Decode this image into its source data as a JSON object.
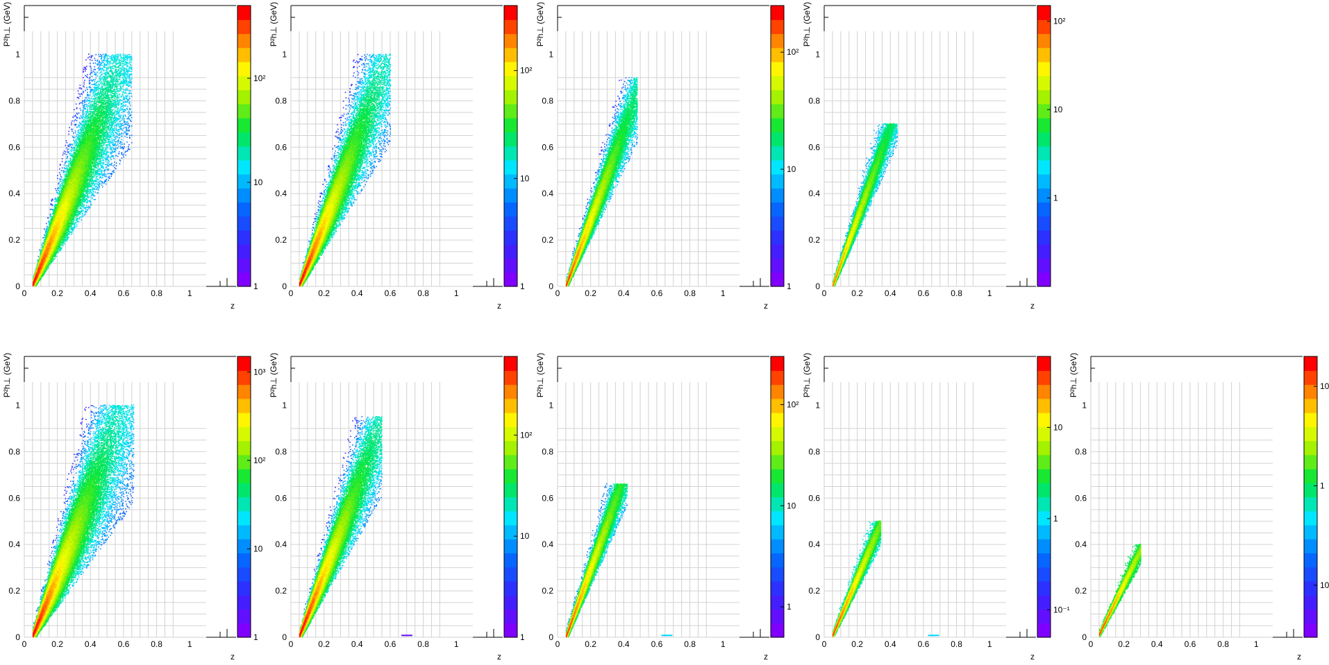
{
  "figure": {
    "columns": 5,
    "rows": 2
  },
  "chart_data": [
    {
      "type": "heatmap",
      "row": 0,
      "col": 0,
      "xlabel": "z",
      "ylabel": "P²h⊥ (GeV)",
      "xlim": [
        0,
        1.1
      ],
      "ylim": [
        0,
        1.1
      ],
      "grid": true,
      "x_ticks": [
        "0",
        "0.2",
        "0.4",
        "0.6",
        "0.8",
        "1"
      ],
      "y_ticks": [
        "0",
        "0.2",
        "0.4",
        "0.6",
        "0.8",
        "1"
      ],
      "colorbar": {
        "scale": "log",
        "min": 1,
        "max": 500,
        "tick_labels": [
          "1",
          "10",
          "10²"
        ],
        "tick_values": [
          1,
          10,
          100
        ]
      },
      "shape": {
        "xmin": 0.05,
        "xmax": 0.65,
        "peak": [
          0.07,
          0.04
        ],
        "slope": 1.7,
        "width0": 0.02,
        "width_growth": 0.55,
        "ymax": 1.0,
        "max_level": 1.0,
        "floor_level": 0.02
      }
    },
    {
      "type": "heatmap",
      "row": 0,
      "col": 1,
      "xlabel": "z",
      "ylabel": "P²h⊥ (GeV)",
      "xlim": [
        0,
        1.1
      ],
      "ylim": [
        0,
        1.1
      ],
      "grid": true,
      "x_ticks": [
        "0",
        "0.2",
        "0.4",
        "0.6",
        "0.8",
        "1"
      ],
      "y_ticks": [
        "0",
        "0.2",
        "0.4",
        "0.6",
        "0.8",
        "1"
      ],
      "colorbar": {
        "scale": "log",
        "min": 1,
        "max": 400,
        "tick_labels": [
          "1",
          "10",
          "10²"
        ],
        "tick_values": [
          1,
          10,
          100
        ]
      },
      "shape": {
        "xmin": 0.05,
        "xmax": 0.6,
        "peak": [
          0.07,
          0.04
        ],
        "slope": 1.75,
        "width0": 0.02,
        "width_growth": 0.5,
        "ymax": 1.0,
        "max_level": 1.0,
        "floor_level": 0.03
      }
    },
    {
      "type": "heatmap",
      "row": 0,
      "col": 2,
      "xlabel": "z",
      "ylabel": "P²h⊥ (GeV)",
      "xlim": [
        0,
        1.1
      ],
      "ylim": [
        0,
        1.1
      ],
      "grid": true,
      "x_ticks": [
        "0",
        "0.2",
        "0.4",
        "0.6",
        "0.8",
        "1"
      ],
      "y_ticks": [
        "0",
        "0.2",
        "0.4",
        "0.6",
        "0.8",
        "1"
      ],
      "colorbar": {
        "scale": "log",
        "min": 1,
        "max": 250,
        "tick_labels": [
          "1",
          "10",
          "10²"
        ],
        "tick_values": [
          1,
          10,
          100
        ]
      },
      "shape": {
        "xmin": 0.05,
        "xmax": 0.48,
        "peak": [
          0.07,
          0.04
        ],
        "slope": 1.9,
        "width0": 0.018,
        "width_growth": 0.35,
        "ymax": 0.9,
        "max_level": 0.95,
        "floor_level": 0.08
      }
    },
    {
      "type": "heatmap",
      "row": 0,
      "col": 3,
      "xlabel": "z",
      "ylabel": "P²h⊥ (GeV)",
      "xlim": [
        0,
        1.1
      ],
      "ylim": [
        0,
        1.1
      ],
      "grid": true,
      "x_ticks": [
        "0",
        "0.2",
        "0.4",
        "0.6",
        "0.8",
        "1"
      ],
      "y_ticks": [
        "0",
        "0.2",
        "0.4",
        "0.6",
        "0.8",
        "1"
      ],
      "colorbar": {
        "scale": "log",
        "min": 0.1,
        "max": 150,
        "tick_labels": [
          "1",
          "10",
          "10²"
        ],
        "tick_values": [
          1,
          10,
          100
        ]
      },
      "shape": {
        "xmin": 0.05,
        "xmax": 0.44,
        "peak": [
          0.07,
          0.04
        ],
        "slope": 1.95,
        "width0": 0.016,
        "width_growth": 0.28,
        "ymax": 0.7,
        "max_level": 0.9,
        "floor_level": 0.35
      }
    },
    {
      "type": "heatmap",
      "row": 1,
      "col": 0,
      "xlabel": "z",
      "ylabel": "P²h⊥ (GeV)",
      "xlim": [
        0,
        1.1
      ],
      "ylim": [
        0,
        1.1
      ],
      "grid": true,
      "x_ticks": [
        "0",
        "0.2",
        "0.4",
        "0.6",
        "0.8",
        "1"
      ],
      "y_ticks": [
        "0",
        "0.2",
        "0.4",
        "0.6",
        "0.8",
        "1"
      ],
      "colorbar": {
        "scale": "log",
        "min": 1,
        "max": 1500,
        "tick_labels": [
          "1",
          "10",
          "10²",
          "10³"
        ],
        "tick_values": [
          1,
          10,
          100,
          1000
        ]
      },
      "shape": {
        "xmin": 0.05,
        "xmax": 0.66,
        "peak": [
          0.07,
          0.04
        ],
        "slope": 1.7,
        "width0": 0.022,
        "width_growth": 0.6,
        "ymax": 1.0,
        "max_level": 1.0,
        "floor_level": 0.02
      }
    },
    {
      "type": "heatmap",
      "row": 1,
      "col": 1,
      "xlabel": "z",
      "ylabel": "P²h⊥ (GeV)",
      "xlim": [
        0,
        1.1
      ],
      "ylim": [
        0,
        1.1
      ],
      "grid": true,
      "x_ticks": [
        "0",
        "0.2",
        "0.4",
        "0.6",
        "0.8",
        "1"
      ],
      "y_ticks": [
        "0",
        "0.2",
        "0.4",
        "0.6",
        "0.8",
        "1"
      ],
      "colorbar": {
        "scale": "log",
        "min": 1,
        "max": 600,
        "tick_labels": [
          "1",
          "10",
          "10²"
        ],
        "tick_values": [
          1,
          10,
          100
        ]
      },
      "shape": {
        "xmin": 0.05,
        "xmax": 0.55,
        "peak": [
          0.07,
          0.04
        ],
        "slope": 1.8,
        "width0": 0.02,
        "width_growth": 0.45,
        "ymax": 0.95,
        "max_level": 1.0,
        "floor_level": 0.03
      },
      "extra_points": [
        {
          "x": 0.7,
          "y": 0.005,
          "level": 0.05
        }
      ]
    },
    {
      "type": "heatmap",
      "row": 1,
      "col": 2,
      "xlabel": "z",
      "ylabel": "P²h⊥ (GeV)",
      "xlim": [
        0,
        1.1
      ],
      "ylim": [
        0,
        1.1
      ],
      "grid": true,
      "x_ticks": [
        "0",
        "0.2",
        "0.4",
        "0.6",
        "0.8",
        "1"
      ],
      "y_ticks": [
        "0",
        "0.2",
        "0.4",
        "0.6",
        "0.8",
        "1"
      ],
      "colorbar": {
        "scale": "log",
        "min": 0.5,
        "max": 300,
        "tick_labels": [
          "1",
          "10",
          "10²"
        ],
        "tick_values": [
          1,
          10,
          100
        ]
      },
      "shape": {
        "xmin": 0.05,
        "xmax": 0.42,
        "peak": [
          0.07,
          0.04
        ],
        "slope": 1.95,
        "width0": 0.018,
        "width_growth": 0.3,
        "ymax": 0.66,
        "max_level": 0.95,
        "floor_level": 0.3
      },
      "extra_points": [
        {
          "x": 0.66,
          "y": 0.005,
          "level": 0.4
        }
      ]
    },
    {
      "type": "heatmap",
      "row": 1,
      "col": 3,
      "xlabel": "z",
      "ylabel": "P²h⊥ (GeV)",
      "xlim": [
        0,
        1.1
      ],
      "ylim": [
        0,
        1.1
      ],
      "grid": true,
      "x_ticks": [
        "0",
        "0.2",
        "0.4",
        "0.6",
        "0.8",
        "1"
      ],
      "y_ticks": [
        "0",
        "0.2",
        "0.4",
        "0.6",
        "0.8",
        "1"
      ],
      "colorbar": {
        "scale": "log",
        "min": 0.05,
        "max": 60,
        "tick_labels": [
          "10⁻¹",
          "1",
          "10"
        ],
        "tick_values": [
          0.1,
          1,
          10
        ]
      },
      "shape": {
        "xmin": 0.05,
        "xmax": 0.34,
        "peak": [
          0.07,
          0.04
        ],
        "slope": 1.65,
        "width0": 0.014,
        "width_growth": 0.22,
        "ymax": 0.5,
        "max_level": 0.95,
        "floor_level": 0.45
      },
      "extra_points": [
        {
          "x": 0.66,
          "y": 0.005,
          "level": 0.4
        }
      ]
    },
    {
      "type": "heatmap",
      "row": 1,
      "col": 4,
      "xlabel": "z",
      "ylabel": "P²h⊥ (GeV)",
      "xlim": [
        0,
        1.1
      ],
      "ylim": [
        0,
        1.1
      ],
      "grid": true,
      "x_ticks": [
        "0",
        "0.2",
        "0.4",
        "0.6",
        "0.8",
        "1"
      ],
      "y_ticks": [
        "0",
        "0.2",
        "0.4",
        "0.6",
        "0.8",
        "1"
      ],
      "colorbar": {
        "scale": "log",
        "min": 0.03,
        "max": 20,
        "tick_labels": [
          "10⁻¹",
          "1",
          "10"
        ],
        "tick_values": [
          0.1,
          1,
          10
        ]
      },
      "shape": {
        "xmin": 0.05,
        "xmax": 0.3,
        "peak": [
          0.07,
          0.04
        ],
        "slope": 1.45,
        "width0": 0.012,
        "width_growth": 0.16,
        "ymax": 0.4,
        "max_level": 0.95,
        "floor_level": 0.55
      }
    }
  ]
}
